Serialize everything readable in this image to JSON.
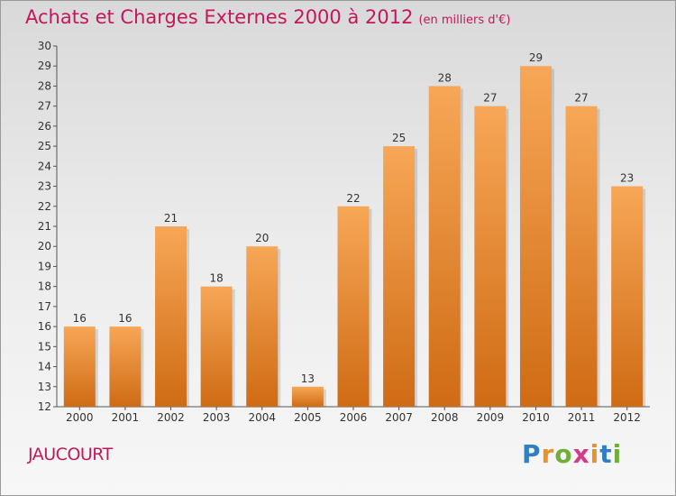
{
  "title": "Achats et Charges Externes 2000 à 2012",
  "unit": "(en milliers d'€)",
  "commune": "JAUCOURT",
  "logo": {
    "letters": [
      {
        "ch": "P",
        "color": "#2f7fc1"
      },
      {
        "ch": "r",
        "color": "#e8912d"
      },
      {
        "ch": "o",
        "color": "#6fae3a"
      },
      {
        "ch": "x",
        "color": "#d53a8a"
      },
      {
        "ch": "i",
        "color": "#e8912d"
      },
      {
        "ch": "t",
        "color": "#2f7fc1"
      },
      {
        "ch": "i",
        "color": "#6fae3a"
      }
    ]
  },
  "colors": {
    "bar_top": "#f7a757",
    "bar_bottom": "#cf6b14",
    "accent": "#c2185b"
  },
  "chart_data": {
    "type": "bar",
    "title": "Achats et Charges Externes 2000 à 2012",
    "categories": [
      "2000",
      "2001",
      "2002",
      "2003",
      "2004",
      "2005",
      "2006",
      "2007",
      "2008",
      "2009",
      "2010",
      "2011",
      "2012"
    ],
    "values": [
      16,
      16,
      21,
      18,
      20,
      13,
      22,
      25,
      28,
      27,
      29,
      27,
      23
    ],
    "ylim": [
      12,
      30
    ],
    "yticks": [
      12,
      13,
      14,
      15,
      16,
      17,
      18,
      19,
      20,
      21,
      22,
      23,
      24,
      25,
      26,
      27,
      28,
      29,
      30
    ],
    "grid": false,
    "xlabel": "",
    "ylabel": ""
  }
}
